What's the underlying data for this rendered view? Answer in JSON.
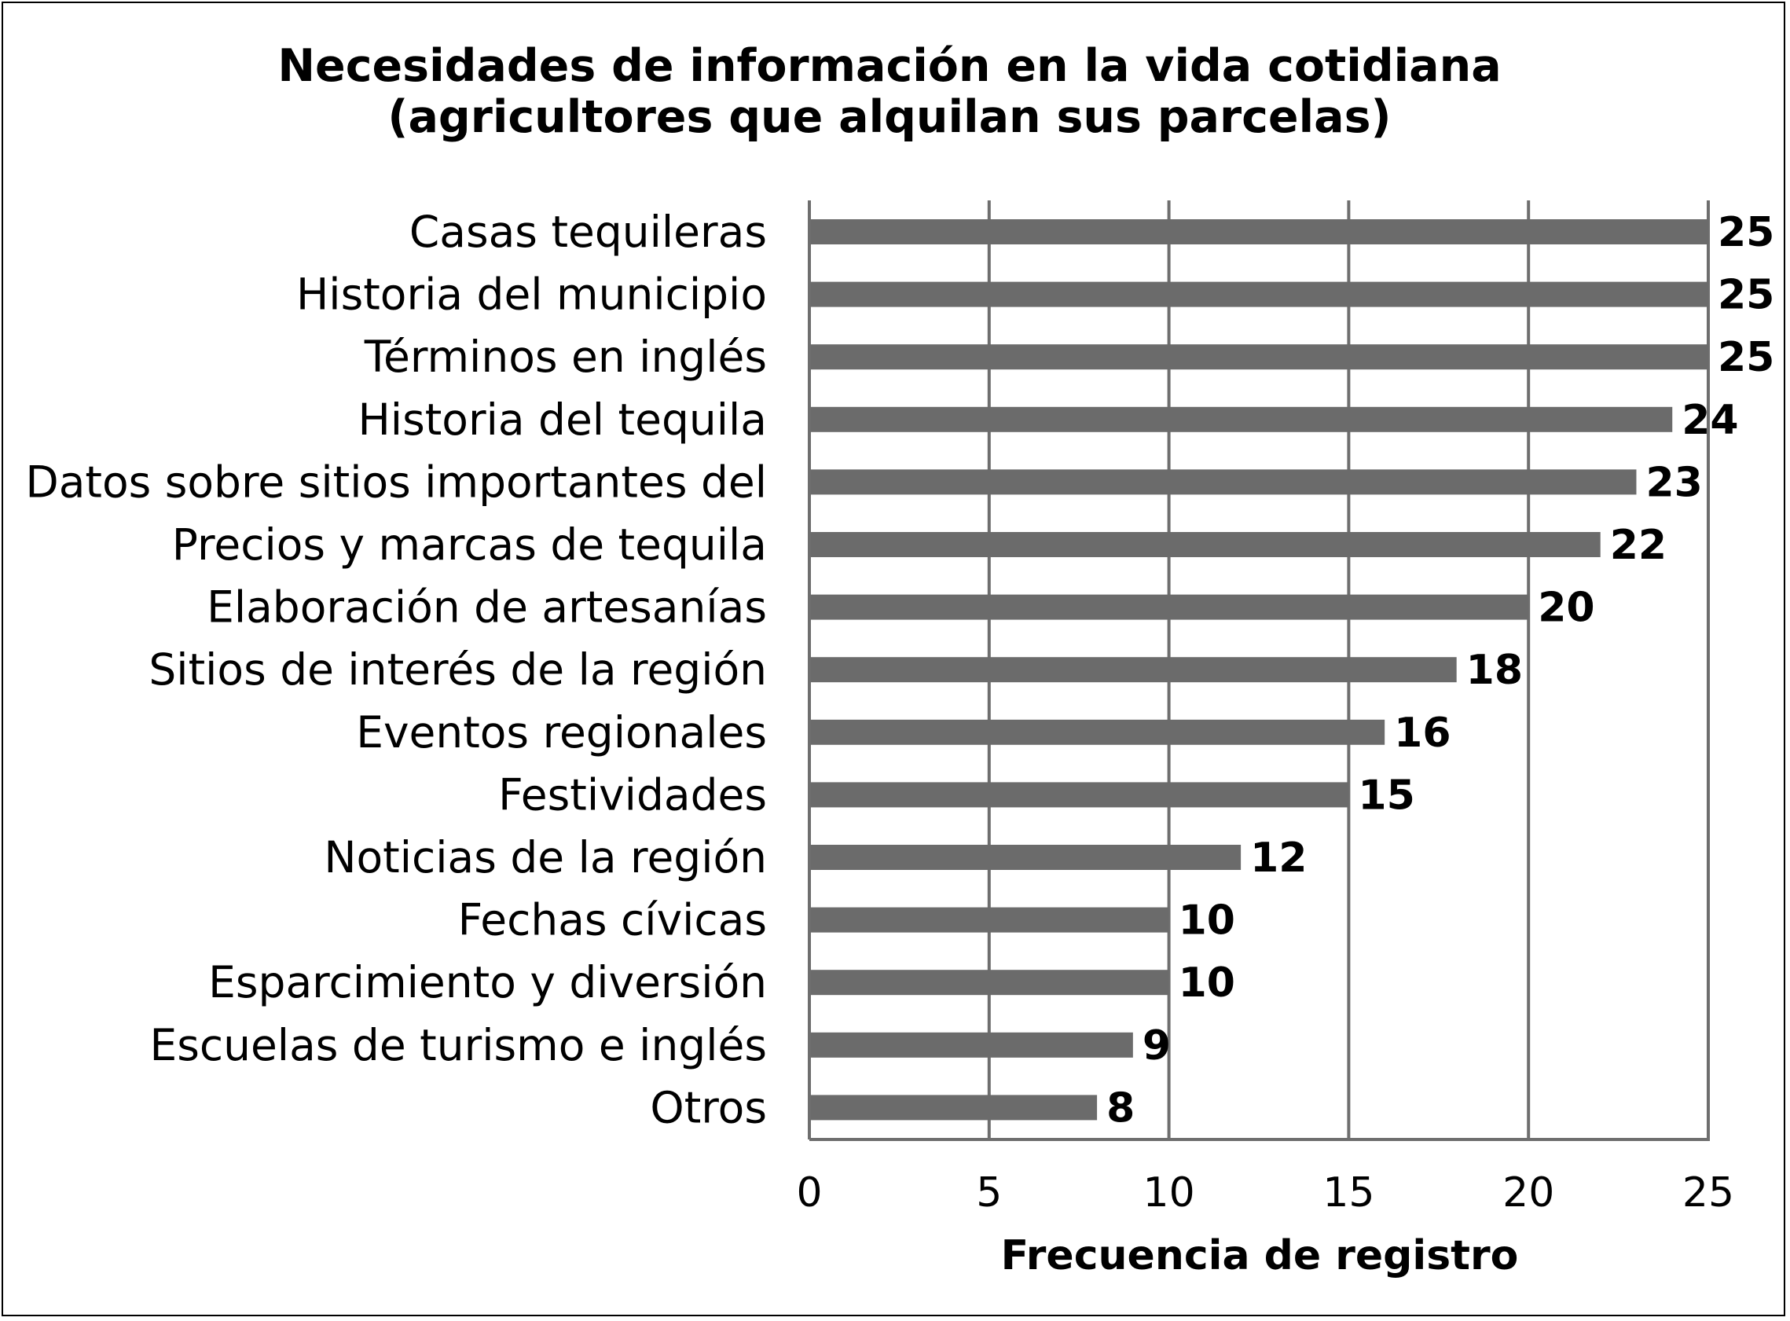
{
  "chart_data": {
    "type": "bar",
    "orientation": "horizontal",
    "title": [
      "Necesidades de información en la vida cotidiana",
      "(agricultores que alquilan sus parcelas)"
    ],
    "xlabel": "Frecuencia de registro",
    "ylabel": "",
    "xlim": [
      0,
      25
    ],
    "xticks": [
      0,
      5,
      10,
      15,
      20,
      25
    ],
    "grid": "vertical",
    "legend": "none",
    "bar_color": "#6b6b6b",
    "categories": [
      "Casas tequileras",
      "Historia del municipio",
      "Términos en inglés",
      "Historia del tequila",
      "Datos sobre sitios importantes del",
      "Precios y marcas de tequila",
      "Elaboración de artesanías",
      "Sitios de interés de la región",
      "Eventos regionales",
      "Festividades",
      "Noticias de la región",
      "Fechas cívicas",
      "Esparcimiento y diversión",
      "Escuelas de turismo e inglés",
      "Otros"
    ],
    "values": [
      25,
      25,
      25,
      24,
      23,
      22,
      20,
      18,
      16,
      15,
      12,
      10,
      10,
      9,
      8
    ]
  }
}
